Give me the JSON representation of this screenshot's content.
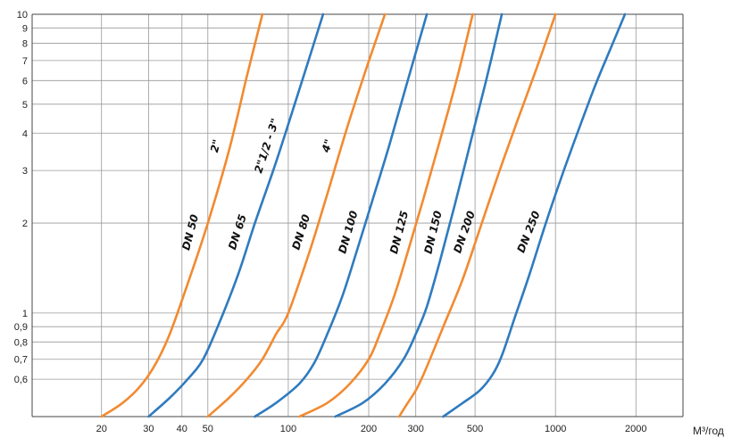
{
  "chart_data": {
    "type": "line",
    "title": "",
    "x_scale": "log",
    "y_scale": "log",
    "xlim": [
      11,
      3000
    ],
    "ylim": [
      0.45,
      10
    ],
    "grid": true,
    "x_ticks": [
      20,
      30,
      40,
      50,
      100,
      200,
      300,
      500,
      1000,
      2000
    ],
    "x_tick_labels": [
      "20",
      "30",
      "40",
      "50",
      "100",
      "200",
      "300",
      "500",
      "1000",
      "2000"
    ],
    "y_ticks": [
      0.6,
      0.7,
      0.8,
      0.9,
      1,
      2,
      3,
      4,
      5,
      6,
      7,
      8,
      9,
      10
    ],
    "y_tick_labels": [
      "0,6",
      "0,7",
      "0,8",
      "0,9",
      "1",
      "2",
      "3",
      "4",
      "5",
      "6",
      "7",
      "8",
      "9",
      "10"
    ],
    "x_unit_label": "M³/год",
    "colors": {
      "orange": "#f28a30",
      "blue": "#2f7bbf",
      "grid": "#999999",
      "axis": "#444444"
    },
    "series": [
      {
        "name": "DN 50",
        "size_label": "2\"",
        "color": "orange",
        "x": [
          20,
          24,
          28,
          32,
          36,
          42,
          50,
          60,
          70,
          80
        ],
        "y": [
          0.45,
          0.5,
          0.57,
          0.68,
          0.85,
          1.25,
          2.0,
          3.5,
          6.2,
          10
        ]
      },
      {
        "name": "DN 65",
        "size_label": "2\"1/2 - 3\"",
        "color": "blue",
        "x": [
          30,
          36,
          42,
          48,
          55,
          65,
          75,
          90,
          110,
          135
        ],
        "y": [
          0.45,
          0.52,
          0.6,
          0.7,
          0.92,
          1.35,
          2.0,
          3.2,
          5.6,
          10
        ]
      },
      {
        "name": "DN 80",
        "size_label": "4\"",
        "color": "orange",
        "x": [
          50,
          60,
          70,
          80,
          90,
          100,
          120,
          140,
          165,
          195,
          230
        ],
        "y": [
          0.45,
          0.52,
          0.6,
          0.7,
          0.85,
          1.0,
          1.6,
          2.5,
          4.1,
          6.5,
          10
        ]
      },
      {
        "name": "DN 100",
        "color": "blue",
        "x": [
          75,
          90,
          110,
          125,
          140,
          160,
          180,
          210,
          240,
          280,
          330
        ],
        "y": [
          0.45,
          0.5,
          0.58,
          0.68,
          0.85,
          1.15,
          1.6,
          2.5,
          3.7,
          6.0,
          10
        ]
      },
      {
        "name": "DN 125",
        "color": "orange",
        "x": [
          110,
          140,
          170,
          200,
          220,
          250,
          280,
          320,
          370,
          430,
          490
        ],
        "y": [
          0.45,
          0.5,
          0.58,
          0.7,
          0.85,
          1.15,
          1.6,
          2.4,
          3.8,
          6.2,
          10
        ]
      },
      {
        "name": "DN 150",
        "color": "blue",
        "x": [
          150,
          190,
          230,
          270,
          300,
          330,
          370,
          420,
          480,
          550,
          630
        ],
        "y": [
          0.45,
          0.5,
          0.58,
          0.7,
          0.85,
          1.05,
          1.5,
          2.3,
          3.7,
          6.0,
          10
        ]
      },
      {
        "name": "DN 200",
        "color": "orange",
        "x": [
          260,
          280,
          300,
          320,
          350,
          390,
          450,
          520,
          610,
          720,
          850,
          1000
        ],
        "y": [
          0.45,
          0.5,
          0.55,
          0.62,
          0.75,
          0.95,
          1.3,
          1.9,
          2.9,
          4.4,
          6.6,
          10
        ]
      },
      {
        "name": "DN 250",
        "color": "blue",
        "x": [
          380,
          450,
          520,
          580,
          630,
          700,
          800,
          920,
          1060,
          1220,
          1400,
          1600,
          1820
        ],
        "y": [
          0.45,
          0.5,
          0.55,
          0.62,
          0.72,
          0.95,
          1.35,
          2.0,
          2.9,
          4.1,
          5.7,
          7.6,
          10
        ]
      }
    ]
  }
}
